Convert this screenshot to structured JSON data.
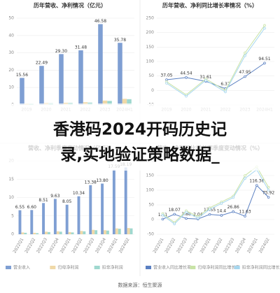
{
  "chart_data": [
    {
      "type": "bar",
      "title": "历年营收、净利情况（亿元）",
      "categories": [
        "2019",
        "2020",
        "2021",
        "2022",
        "2023",
        "2024H1"
      ],
      "series": [
        {
          "color": "#7f9fd3",
          "values": [
            15.56,
            22.49,
            29.3,
            31.48,
            46.58,
            35.78
          ],
          "value_labels": [
            "15.56",
            "22.49",
            "29.30",
            "31.48",
            "46.58",
            "35.78"
          ]
        },
        {
          "color": "#f0d9a8",
          "values": [
            0.8,
            1.0,
            1.2,
            1.5,
            2.5,
            3.5
          ]
        },
        {
          "color": "#9fd8cf",
          "values": [
            0.7,
            0.9,
            1.1,
            1.3,
            2.3,
            3.3
          ]
        }
      ],
      "ylim": [
        0,
        50
      ],
      "yticks": [
        0,
        10,
        20,
        30,
        40,
        50
      ],
      "grid": true
    },
    {
      "type": "line",
      "title": "历年营收、净利同比增长率情况（%）",
      "categories": [
        "2019",
        "2020",
        "2021",
        "2022",
        "2023",
        "2024H1"
      ],
      "series": [
        {
          "color": "#5b80c2",
          "values": [
            37.05,
            44.54,
            31.61,
            6.37,
            47.95,
            94.51
          ]
        },
        {
          "color": "#c8e3a6",
          "values": [
            30,
            -15,
            40,
            0,
            130,
            225
          ]
        },
        {
          "color": "#a6d6ee",
          "values": [
            25,
            -20,
            35,
            -5,
            120,
            215
          ]
        }
      ],
      "ylim": [
        -50,
        250
      ],
      "yticks": [
        -50,
        0,
        50,
        100,
        150,
        200,
        250
      ],
      "grid": true
    },
    {
      "type": "bar",
      "title": "营收、净利季度变动情况（亿元）",
      "categories": [
        "2022Q1",
        "2022Q2",
        "2022Q3",
        "2022Q4",
        "2023Q1",
        "2023Q2",
        "2023Q3",
        "2023Q4",
        "2024Q1",
        "2024Q2"
      ],
      "series": [
        {
          "name": "营业收入",
          "color": "#7f9fd3",
          "values": [
            6.55,
            6.6,
            8.51,
            9.63,
            8.05,
            10.34,
            13.38,
            13.8,
            17.59,
            18.19
          ],
          "value_labels": [
            "6.55",
            "6.60",
            "8.51",
            "9.63",
            "8.05",
            "10.34",
            "13.38",
            "13.80",
            "17.59",
            "18.19"
          ]
        },
        {
          "name": "归母净利润",
          "color": "#f0d9a8",
          "values": [
            0.5,
            0.4,
            0.7,
            0.8,
            0.6,
            0.9,
            1.2,
            1.1,
            1.6,
            1.7
          ]
        },
        {
          "name": "扣非净利润",
          "color": "#9fd8cf",
          "values": [
            0.4,
            0.3,
            0.6,
            0.7,
            0.5,
            0.8,
            1.1,
            1.0,
            1.5,
            1.6
          ]
        }
      ],
      "ylim": [
        0,
        20
      ],
      "yticks": [
        0,
        5,
        10,
        15,
        20
      ],
      "grid": true
    },
    {
      "type": "line",
      "title": "营收、净利同比增长率季度变动情况（%）",
      "categories": [
        "2022Q1",
        "2022Q2",
        "2022Q3",
        "2022Q4",
        "2023Q1",
        "2023Q2",
        "2023Q3",
        "2023Q4",
        "2024Q1",
        "2024Q2"
      ],
      "series": [
        {
          "name": "营业收入同比增长率",
          "color": "#5b80c2",
          "values": [
            1.51,
            18.07,
            3.88,
            2.04,
            17.55,
            14.4,
            26.86,
            11.63,
            116.36,
            75.92
          ]
        },
        {
          "name": "归母净利润同比增长率",
          "color": "#c8e3a6",
          "values": [
            20,
            -10,
            30,
            10,
            40,
            60,
            80,
            150,
            180,
            110
          ]
        },
        {
          "name": "扣非净利润同比增长率",
          "color": "#a6d6ee",
          "values": [
            15,
            -15,
            25,
            5,
            35,
            55,
            75,
            140,
            170,
            100
          ]
        }
      ],
      "ylim": [
        -50,
        200
      ],
      "yticks": [
        -50,
        0,
        50,
        100,
        150,
        200
      ],
      "grid": true
    }
  ],
  "banner": {
    "lines": [
      "香港码2024开码历史记",
      "录,实地验证策略数据_"
    ]
  },
  "source": "数据来源：恒生聚源"
}
